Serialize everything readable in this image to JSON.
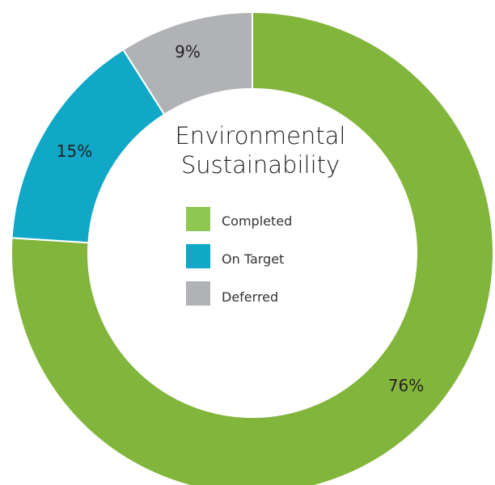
{
  "chart_data": {
    "type": "pie",
    "variant": "donut",
    "title_lines": [
      "Environmental",
      "Sustainability"
    ],
    "slices": [
      {
        "name": "Completed",
        "value": 76,
        "label": "76%",
        "color": "#82b53b",
        "legend_color": "#8fc753"
      },
      {
        "name": "On Target",
        "value": 15,
        "label": "15%",
        "color": "#10a8c6",
        "legend_color": "#10a8c6"
      },
      {
        "name": "Deferred",
        "value": 9,
        "label": "9%",
        "color": "#b1b2b5",
        "legend_color": "#b1b2b5"
      }
    ],
    "legend_position": "center",
    "background": "#ffffff"
  }
}
